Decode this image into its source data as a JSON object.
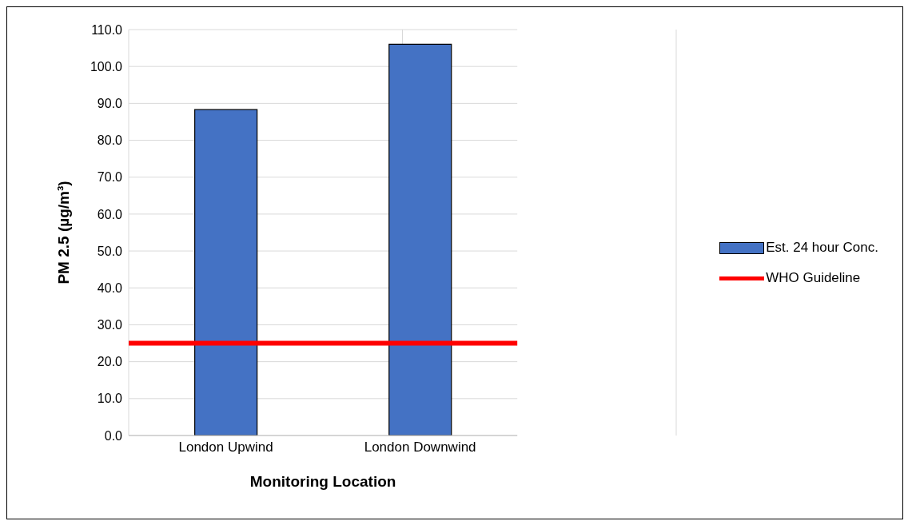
{
  "chart_data": {
    "type": "bar",
    "xlabel": "Monitoring Location",
    "ylabel": "PM 2.5 (µg/m³)",
    "categories": [
      "London Upwind",
      "London Downwind"
    ],
    "series": [
      {
        "name": "Est. 24 hour Conc.",
        "color": "#4472c4",
        "values": [
          88.3,
          106.0
        ]
      }
    ],
    "ref_lines": [
      {
        "axis": "y",
        "value": 25,
        "label": "WHO Guideline",
        "color": "#ff0000"
      }
    ],
    "ylim": [
      0,
      110
    ],
    "yticks": [
      {
        "value": 0,
        "label": "0.0"
      },
      {
        "value": 10,
        "label": "10.0"
      },
      {
        "value": 20,
        "label": "20.0"
      },
      {
        "value": 30,
        "label": "30.0"
      },
      {
        "value": 40,
        "label": "40.0"
      },
      {
        "value": 50,
        "label": "50.0"
      },
      {
        "value": 60,
        "label": "60.0"
      },
      {
        "value": 70,
        "label": "70.0"
      },
      {
        "value": 80,
        "label": "80.0"
      },
      {
        "value": 90,
        "label": "90.0"
      },
      {
        "value": 100,
        "label": "100.0"
      },
      {
        "value": 110,
        "label": "110.0"
      }
    ],
    "grid": true,
    "legend": "right"
  }
}
